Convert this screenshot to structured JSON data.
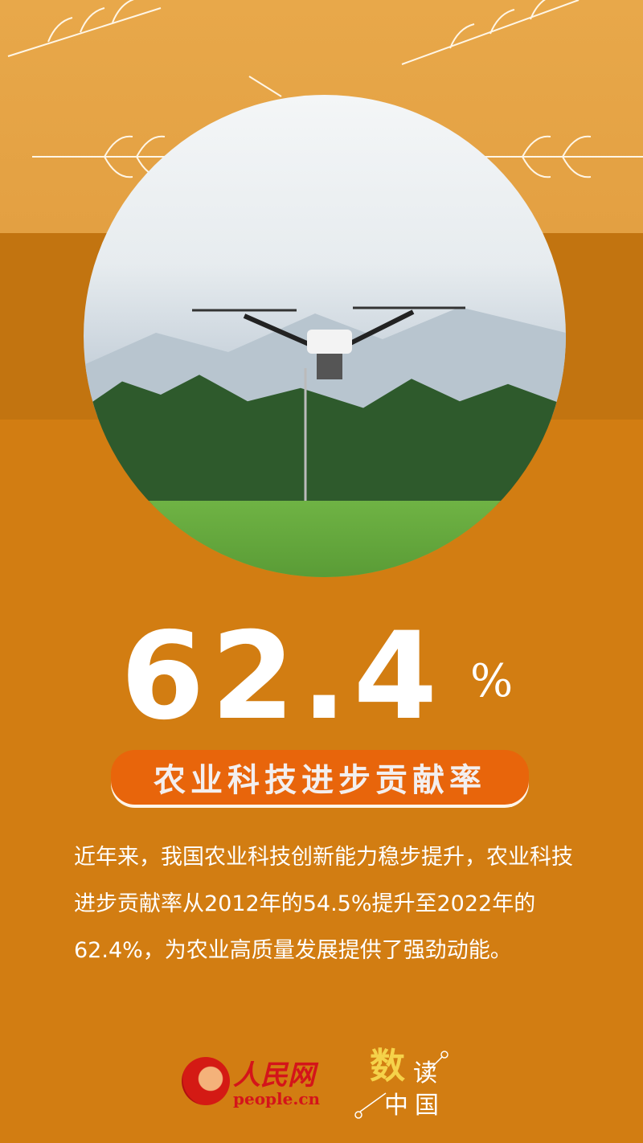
{
  "headline": {
    "value": "62.4",
    "unit": "%"
  },
  "label": "农业科技进步贡献率",
  "body": "近年来，我国农业科技创新能力稳步提升，农业科技进步贡献率从2012年的54.5%提升至2022年的62.4%，为农业高质量发展提供了强劲动能。",
  "logo": {
    "name": "人民网",
    "domain": "people.cn"
  },
  "brand": {
    "a": "数",
    "b": "读",
    "c": "中国"
  },
  "colors": {
    "background": "#d27d12",
    "band": "#c27410",
    "pill": "#e8650b",
    "top": "#e8a84a"
  },
  "image": "agricultural drone over rice field"
}
